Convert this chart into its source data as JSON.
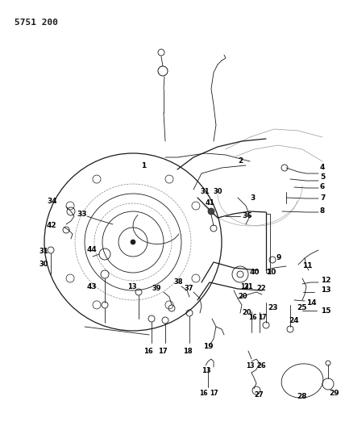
{
  "title": "5751 200",
  "bg_color": "#ffffff",
  "line_color": "#1a1a1a",
  "fig_width": 4.28,
  "fig_height": 5.33,
  "dpi": 100,
  "title_fontsize": 8,
  "title_font": "monospace"
}
